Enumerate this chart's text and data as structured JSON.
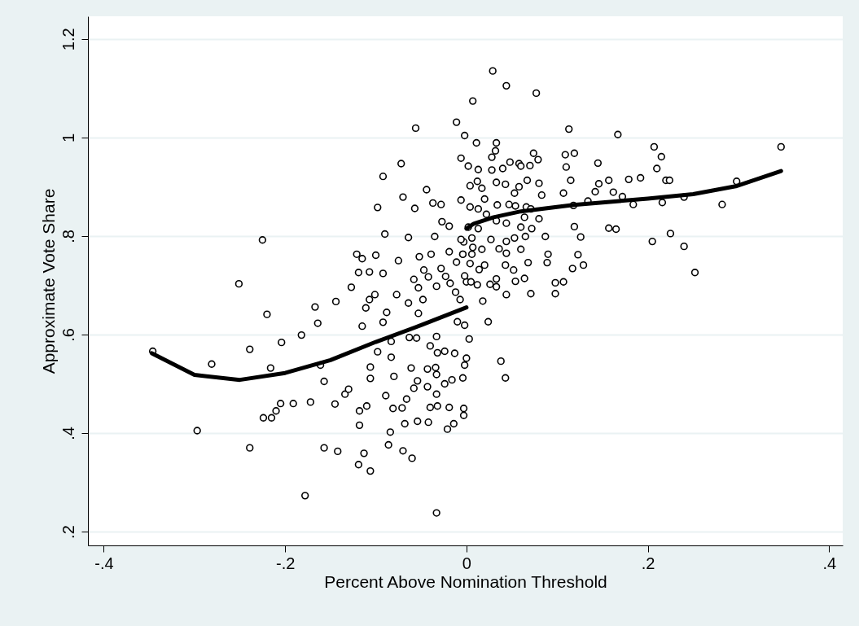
{
  "chart_data": {
    "type": "scatter",
    "xlabel": "Percent Above Nomination Threshold",
    "ylabel": "Approximate Vote Share",
    "xlim": [
      -0.4175,
      0.415
    ],
    "ylim": [
      0.172,
      1.246
    ],
    "xticks": [
      {
        "value": -0.4,
        "label": "-.4"
      },
      {
        "value": -0.2,
        "label": "-.2"
      },
      {
        "value": 0,
        "label": "0"
      },
      {
        "value": 0.2,
        "label": ".2"
      },
      {
        "value": 0.4,
        "label": ".4"
      }
    ],
    "yticks": [
      {
        "value": 0.2,
        "label": ".2"
      },
      {
        "value": 0.4,
        "label": ".4"
      },
      {
        "value": 0.6,
        "label": ".6"
      },
      {
        "value": 0.8,
        "label": ".8"
      },
      {
        "value": 1,
        "label": "1"
      },
      {
        "value": 1.2,
        "label": "1.2"
      }
    ],
    "grid": "y",
    "marker": "circle",
    "series": [
      {
        "color": "#000000",
        "x": [
          -0.346,
          -0.281,
          -0.297,
          -0.251,
          -0.225,
          -0.22,
          -0.239,
          -0.239,
          -0.216,
          -0.204,
          -0.205,
          -0.215,
          -0.224,
          -0.21,
          -0.191,
          -0.182,
          -0.178,
          -0.172,
          -0.167,
          -0.164,
          -0.161,
          -0.157,
          -0.157,
          -0.144,
          -0.145,
          -0.142,
          -0.134,
          -0.13,
          -0.127,
          -0.121,
          -0.119,
          -0.115,
          -0.115,
          -0.111,
          -0.118,
          -0.119,
          -0.113,
          -0.106,
          -0.118,
          -0.11,
          -0.106,
          -0.106,
          -0.107,
          -0.1,
          -0.101,
          -0.107,
          -0.092,
          -0.09,
          -0.088,
          -0.092,
          -0.098,
          -0.083,
          -0.083,
          -0.08,
          -0.089,
          -0.081,
          -0.084,
          -0.086,
          -0.07,
          -0.06,
          -0.068,
          -0.071,
          -0.066,
          -0.061,
          -0.058,
          -0.054,
          -0.075,
          -0.064,
          -0.077,
          -0.064,
          -0.058,
          -0.053,
          -0.052,
          -0.053,
          -0.063,
          -0.055,
          -0.048,
          -0.047,
          -0.042,
          -0.035,
          -0.039,
          -0.033,
          -0.028,
          -0.019,
          -0.033,
          -0.04,
          -0.032,
          -0.034,
          -0.043,
          -0.033,
          -0.043,
          -0.033,
          -0.024,
          -0.016,
          -0.032,
          -0.019,
          -0.04,
          -0.054,
          -0.042,
          -0.021,
          -0.014,
          -0.003,
          -0.003,
          -0.004,
          -0.033,
          -0.024,
          -0.013,
          -0.002,
          0.0,
          -0.01,
          -0.002,
          -0.012,
          -0.007,
          -0.018,
          -0.023,
          -0.011,
          -0.004,
          0.0,
          0.003,
          0.347,
          0.298,
          0.282,
          0.252,
          0.24,
          0.225,
          0.205,
          0.207,
          0.215,
          0.21,
          0.22,
          0.224,
          0.24,
          0.216,
          0.184,
          0.192,
          0.179,
          0.172,
          0.167,
          0.162,
          0.157,
          0.165,
          0.157,
          0.146,
          0.145,
          0.142,
          0.134,
          0.129,
          0.123,
          0.126,
          0.119,
          0.117,
          0.119,
          0.109,
          0.11,
          0.113,
          0.115,
          0.118,
          0.107,
          0.107,
          0.098,
          0.098,
          0.089,
          0.09,
          0.087,
          0.08,
          0.083,
          0.08,
          0.079,
          0.074,
          0.077,
          0.072,
          0.071,
          0.068,
          0.064,
          0.064,
          0.07,
          0.058,
          0.044,
          0.029,
          0.007,
          -0.011,
          -0.002,
          0.011,
          0.033,
          0.032,
          0.028,
          -0.006,
          0.002,
          0.013,
          0.028,
          0.04,
          0.048,
          0.06,
          0.033,
          0.012,
          0.004,
          -0.006,
          0.017,
          0.02,
          0.034,
          0.043,
          0.053,
          0.054,
          0.058,
          0.067,
          0.066,
          0.071,
          0.047,
          0.033,
          0.044,
          0.06,
          0.065,
          0.053,
          0.044,
          0.036,
          0.044,
          0.06,
          0.043,
          0.052,
          0.054,
          0.033,
          0.033,
          0.044,
          0.026,
          0.018,
          0.024,
          0.038,
          0.043,
          0.027,
          0.017,
          0.02,
          0.014,
          0.012,
          0.005,
          0.004,
          0.006,
          0.007,
          0.006,
          0.002,
          0.013,
          0.013,
          0.004,
          0.022,
          -0.003,
          -0.004,
          -0.006,
          -0.002,
          -0.056,
          -0.072,
          -0.092,
          -0.044,
          -0.07,
          -0.057,
          -0.098,
          -0.037,
          -0.028,
          -0.027,
          -0.019
        ],
        "values": [
          0.566,
          0.54,
          0.405,
          0.703,
          0.792,
          0.641,
          0.57,
          0.37,
          0.532,
          0.584,
          0.46,
          0.431,
          0.431,
          0.445,
          0.46,
          0.599,
          0.273,
          0.463,
          0.656,
          0.623,
          0.538,
          0.505,
          0.37,
          0.667,
          0.459,
          0.363,
          0.479,
          0.489,
          0.696,
          0.763,
          0.726,
          0.754,
          0.617,
          0.654,
          0.416,
          0.336,
          0.359,
          0.323,
          0.445,
          0.455,
          0.534,
          0.511,
          0.727,
          0.761,
          0.681,
          0.671,
          0.724,
          0.804,
          0.645,
          0.625,
          0.565,
          0.586,
          0.554,
          0.515,
          0.476,
          0.45,
          0.402,
          0.376,
          0.364,
          0.349,
          0.419,
          0.451,
          0.469,
          0.532,
          0.491,
          0.506,
          0.75,
          0.797,
          0.681,
          0.664,
          0.712,
          0.695,
          0.758,
          0.643,
          0.594,
          0.593,
          0.671,
          0.731,
          0.717,
          0.799,
          0.763,
          0.698,
          0.734,
          0.768,
          0.596,
          0.577,
          0.563,
          0.533,
          0.53,
          0.519,
          0.494,
          0.479,
          0.5,
          0.508,
          0.455,
          0.452,
          0.452,
          0.424,
          0.422,
          0.408,
          0.419,
          0.436,
          0.45,
          0.512,
          0.238,
          0.566,
          0.562,
          0.538,
          0.552,
          0.626,
          0.619,
          0.686,
          0.671,
          0.704,
          0.718,
          0.747,
          0.763,
          0.707,
          0.591,
          0.981,
          0.911,
          0.864,
          0.726,
          0.779,
          0.805,
          0.789,
          0.981,
          0.961,
          0.937,
          0.913,
          0.913,
          0.879,
          0.868,
          0.864,
          0.918,
          0.915,
          0.88,
          1.006,
          0.889,
          0.913,
          0.814,
          0.816,
          0.906,
          0.948,
          0.89,
          0.871,
          0.741,
          0.762,
          0.798,
          0.819,
          0.734,
          0.968,
          0.965,
          0.94,
          1.017,
          0.913,
          0.862,
          0.887,
          0.707,
          0.683,
          0.705,
          0.746,
          0.763,
          0.799,
          0.835,
          0.883,
          0.907,
          0.955,
          0.968,
          1.09,
          0.815,
          0.683,
          0.746,
          0.714,
          0.838,
          0.943,
          0.947,
          1.105,
          1.135,
          1.074,
          1.031,
          1.004,
          0.989,
          0.989,
          0.973,
          0.96,
          0.958,
          0.942,
          0.935,
          0.934,
          0.937,
          0.95,
          0.942,
          0.909,
          0.911,
          0.902,
          0.873,
          0.897,
          0.875,
          0.863,
          0.905,
          0.887,
          0.861,
          0.9,
          0.913,
          0.859,
          0.855,
          0.864,
          0.831,
          0.826,
          0.818,
          0.799,
          0.796,
          0.789,
          0.774,
          0.765,
          0.773,
          0.741,
          0.731,
          0.708,
          0.713,
          0.697,
          0.681,
          0.702,
          0.668,
          0.626,
          0.546,
          0.512,
          0.793,
          0.773,
          0.741,
          0.732,
          0.701,
          0.707,
          0.744,
          0.763,
          0.777,
          0.796,
          0.818,
          0.815,
          0.855,
          0.859,
          0.844,
          0.788,
          0.763,
          0.793,
          0.719,
          1.019,
          0.947,
          0.921,
          0.894,
          0.879,
          0.856,
          0.858,
          0.867,
          0.864,
          0.829,
          0.82
        ]
      },
      {
        "type": "line",
        "color": "#000000",
        "marker": "none",
        "x": [
          -0.347,
          -0.3,
          -0.25,
          -0.2,
          -0.15,
          -0.1,
          -0.05,
          0.0
        ],
        "values": [
          0.562,
          0.518,
          0.508,
          0.522,
          0.548,
          0.585,
          0.619,
          0.655
        ]
      },
      {
        "type": "line",
        "color": "#000000",
        "marker": "none",
        "x": [
          0.0,
          0.008,
          0.03,
          0.06,
          0.118,
          0.15,
          0.2,
          0.25,
          0.297,
          0.347
        ],
        "values": [
          0.815,
          0.825,
          0.838,
          0.85,
          0.863,
          0.868,
          0.876,
          0.885,
          0.901,
          0.932
        ]
      }
    ]
  }
}
